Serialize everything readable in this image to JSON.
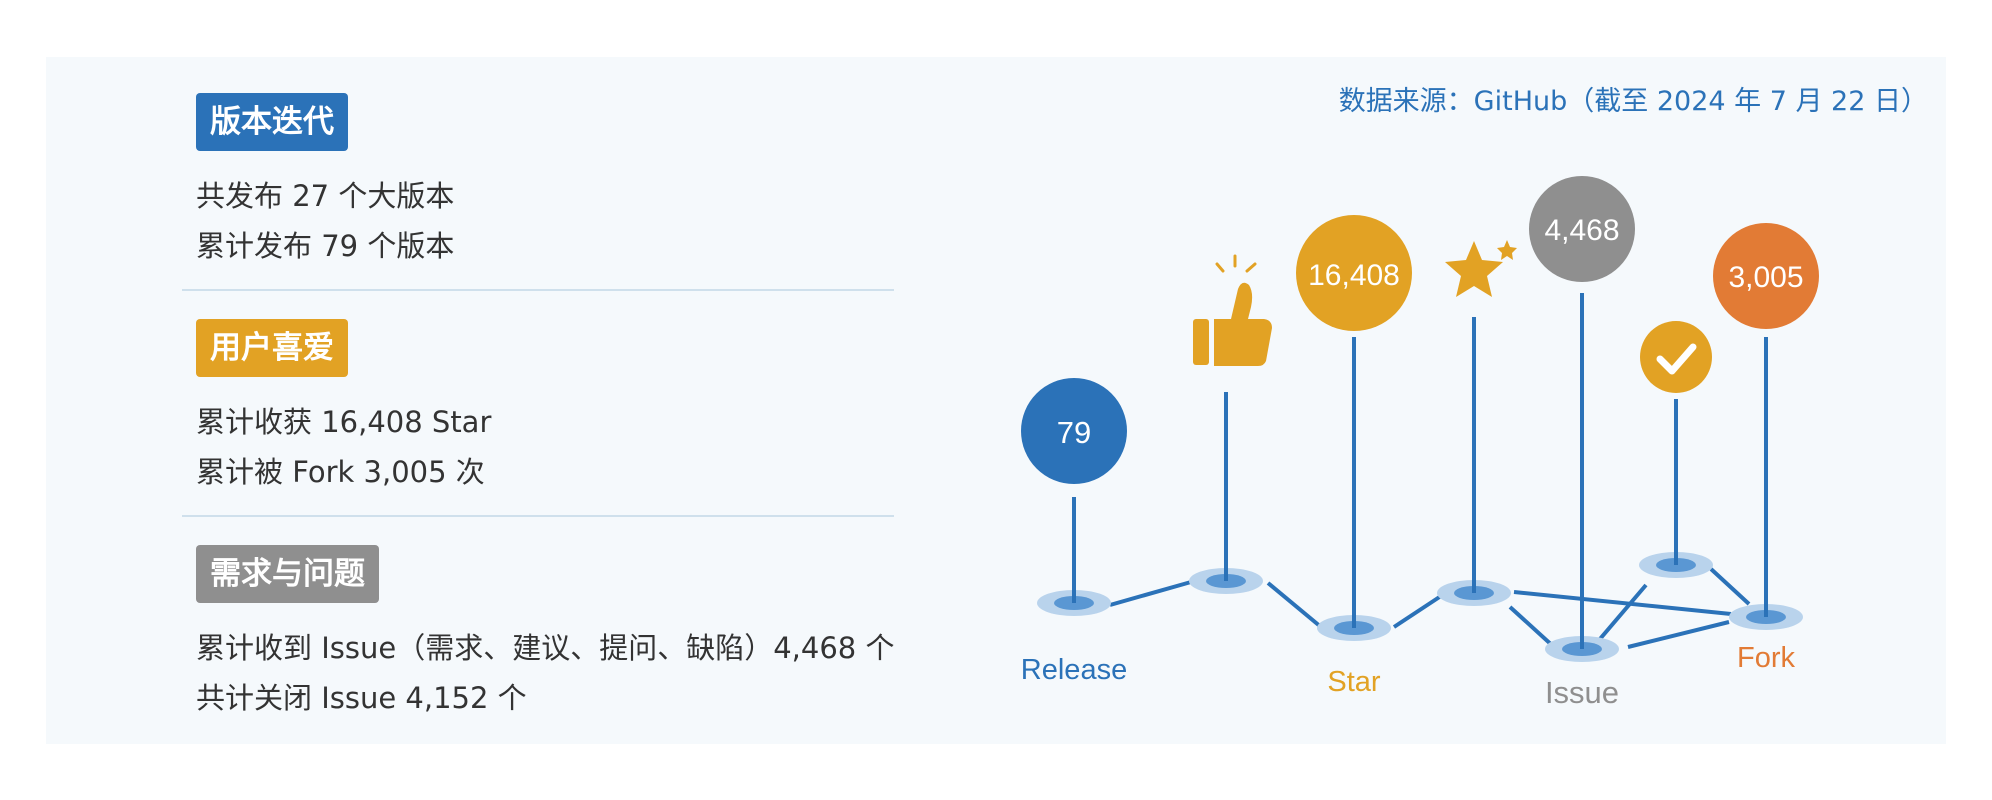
{
  "source_note": "数据来源：GitHub（截至 2024 年 7 月 22 日）",
  "sections": [
    {
      "badge": "版本迭代",
      "color": "#2b72b8",
      "lines": [
        "共发布 27 个大版本",
        "累计发布 79 个版本"
      ]
    },
    {
      "badge": "用户喜爱",
      "color": "#e2a224",
      "lines": [
        "累计收获 16,408 Star",
        "累计被 Fork 3,005 次"
      ]
    },
    {
      "badge": "需求与问题",
      "color": "#8f8f8f",
      "lines": [
        "累计收到 Issue（需求、建议、提问、缺陷）4,468 个",
        "共计关闭 Issue 4,152 个"
      ]
    }
  ],
  "diagram": {
    "release": {
      "value": "79",
      "label": "Release",
      "color": "#2b72b8"
    },
    "star": {
      "value": "16,408",
      "label": "Star",
      "color": "#e2a224"
    },
    "issue": {
      "value": "4,468",
      "label": "Issue",
      "color": "#8f8f8f"
    },
    "fork": {
      "value": "3,005",
      "label": "Fork",
      "color": "#e27b35"
    },
    "icons": [
      "thumbs-up-icon",
      "star-icon",
      "check-icon"
    ],
    "line_color": "#2b72b8"
  }
}
